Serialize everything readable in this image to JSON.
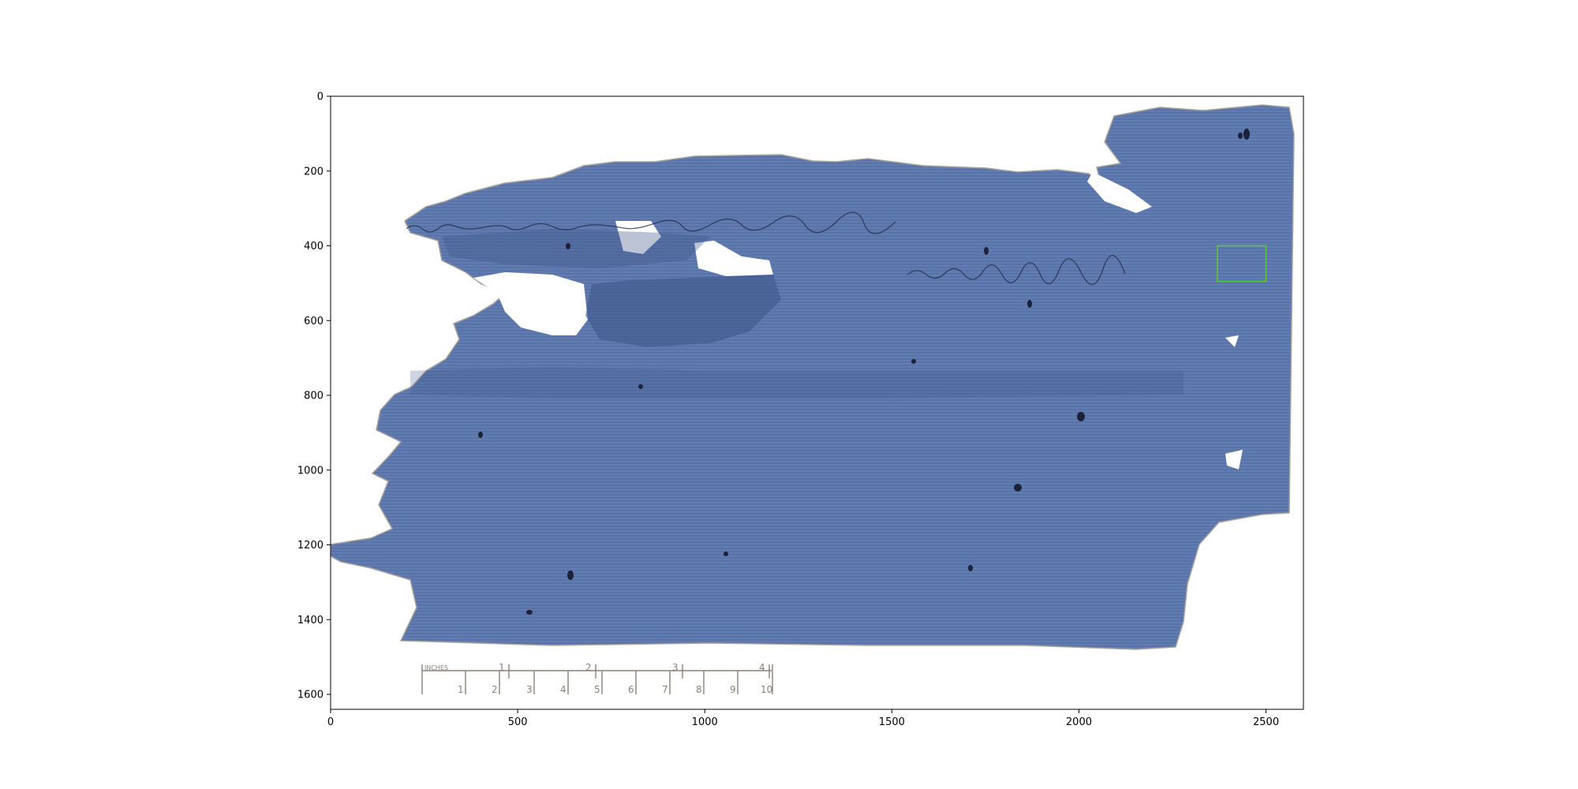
{
  "figure": {
    "image_description": "Scan of a blue-toned papyrus fragment with faint handwritten script; an inches/centimetres ruler is visible at lower left.",
    "x_axis": {
      "ticks": [
        "0",
        "500",
        "1000",
        "1500",
        "2000",
        "2500"
      ],
      "range": [
        0,
        2600
      ]
    },
    "y_axis": {
      "ticks": [
        "0",
        "200",
        "400",
        "600",
        "800",
        "1000",
        "1200",
        "1400",
        "1600"
      ],
      "range": [
        1640,
        0
      ],
      "inverted": true
    },
    "ruler": {
      "unit_label": "INCHES",
      "inch_numbers": [
        "1",
        "2",
        "3",
        "4"
      ],
      "cm_numbers": [
        "1",
        "2",
        "3",
        "4",
        "5",
        "6",
        "7",
        "8",
        "9",
        "10"
      ]
    },
    "highlight_box": {
      "x0": 2370,
      "x1": 2500,
      "y0": 400,
      "y1": 495,
      "color": "#55cc33"
    },
    "colors": {
      "papyrus": "#5c77ad",
      "papyrus_dark": "#3d5387",
      "axes": "#000000"
    }
  }
}
